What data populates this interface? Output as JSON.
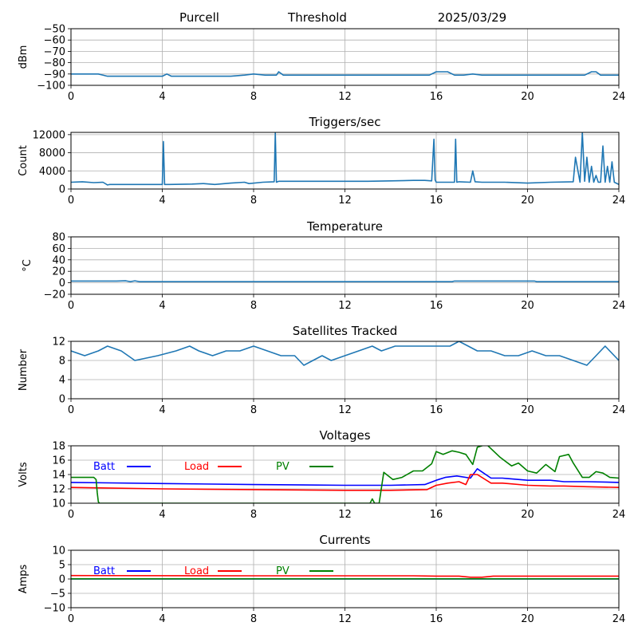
{
  "header": {
    "station": "Purcell",
    "mode": "Threshold",
    "date": "2025/03/29"
  },
  "chart_data": [
    {
      "type": "line",
      "title": "",
      "xlabel": "",
      "ylabel": "dBm",
      "xlim": [
        0,
        24
      ],
      "ylim": [
        -100,
        -50
      ],
      "xticks": [
        "0",
        "4",
        "8",
        "12",
        "16",
        "20",
        "24"
      ],
      "yticks": [
        "−50",
        "−60",
        "−70",
        "−80",
        "−90",
        "−100"
      ],
      "grid": true,
      "series": [
        {
          "color": "#1f77b4",
          "x": [
            0,
            1.2,
            1.6,
            4,
            4.2,
            4.4,
            7,
            7.6,
            8,
            8.5,
            9,
            9.1,
            9.3,
            12,
            15.7,
            16,
            16.5,
            16.8,
            17.2,
            17.6,
            18,
            19,
            20,
            21,
            22,
            22.5,
            22.8,
            23,
            23.2,
            23.5,
            24
          ],
          "y": [
            -90,
            -90,
            -92,
            -92,
            -90,
            -92,
            -92,
            -91,
            -90,
            -91,
            -91,
            -88,
            -91,
            -91,
            -91,
            -88,
            -88,
            -91,
            -91,
            -90,
            -91,
            -91,
            -91,
            -91,
            -91,
            -91,
            -88,
            -88,
            -91,
            -91,
            -91
          ]
        }
      ]
    },
    {
      "type": "line",
      "title": "Triggers/sec",
      "xlabel": "",
      "ylabel": "Count",
      "xlim": [
        0,
        24
      ],
      "ylim": [
        0,
        12500
      ],
      "xticks": [
        "0",
        "4",
        "8",
        "12",
        "16",
        "20",
        "24"
      ],
      "yticks": [
        "0",
        "4000",
        "8000",
        "12000"
      ],
      "grid": true,
      "series": [
        {
          "color": "#1f77b4",
          "x": [
            0,
            0.5,
            1,
            1.4,
            1.6,
            1.7,
            2.5,
            3.5,
            4,
            4.05,
            4.1,
            4.2,
            4.3,
            5.3,
            5.8,
            6.3,
            7,
            7.6,
            7.8,
            8.4,
            8.9,
            8.95,
            9,
            9.05,
            9.1,
            10,
            11,
            12,
            13,
            14,
            15,
            15.5,
            15.8,
            15.9,
            15.95,
            16,
            16.2,
            16.8,
            16.85,
            16.9,
            17,
            17.5,
            17.6,
            17.7,
            18,
            18.5,
            19,
            20,
            21,
            22,
            22.1,
            22.3,
            22.4,
            22.5,
            22.6,
            22.7,
            22.8,
            22.9,
            23,
            23.1,
            23.2,
            23.3,
            23.4,
            23.5,
            23.6,
            23.7,
            23.8,
            24
          ],
          "y": [
            1500,
            1600,
            1400,
            1500,
            900,
            1000,
            1000,
            1000,
            1000,
            10500,
            1000,
            1000,
            1000,
            1100,
            1200,
            1000,
            1300,
            1500,
            1200,
            1500,
            1600,
            12500,
            1500,
            1600,
            1700,
            1700,
            1700,
            1700,
            1700,
            1800,
            1900,
            1900,
            1800,
            11000,
            2000,
            1500,
            1500,
            1500,
            11000,
            1500,
            1600,
            1500,
            4000,
            1600,
            1500,
            1500,
            1500,
            1300,
            1500,
            1600,
            7000,
            1500,
            12500,
            1700,
            7000,
            1500,
            5000,
            1500,
            3000,
            1500,
            1500,
            9500,
            1500,
            5000,
            1500,
            6000,
            1500,
            1000
          ]
        }
      ]
    },
    {
      "type": "line",
      "title": "Temperature",
      "xlabel": "",
      "ylabel": "°C",
      "xlim": [
        0,
        24
      ],
      "ylim": [
        -20,
        80
      ],
      "xticks": [
        "0",
        "4",
        "8",
        "12",
        "16",
        "20",
        "24"
      ],
      "yticks": [
        "80",
        "60",
        "40",
        "20",
        "0",
        "−20"
      ],
      "grid": true,
      "series": [
        {
          "color": "#1f77b4",
          "x": [
            0,
            2,
            2.4,
            2.6,
            2.8,
            3,
            16.7,
            16.8,
            20.3,
            20.4,
            24
          ],
          "y": [
            3,
            3,
            3.5,
            2,
            3.5,
            2,
            2,
            3,
            3,
            2,
            2
          ]
        }
      ]
    },
    {
      "type": "line",
      "title": "Satellites Tracked",
      "xlabel": "",
      "ylabel": "Number",
      "xlim": [
        0,
        24
      ],
      "ylim": [
        0,
        12
      ],
      "xticks": [
        "0",
        "4",
        "8",
        "12",
        "16",
        "20",
        "24"
      ],
      "yticks": [
        "0",
        "4",
        "8",
        "12"
      ],
      "grid": true,
      "series": [
        {
          "color": "#1f77b4",
          "x": [
            0,
            0.6,
            1.2,
            1.6,
            2.2,
            2.8,
            3.8,
            4.6,
            5.2,
            5.6,
            6.2,
            6.8,
            7.4,
            8,
            8.6,
            9.2,
            9.8,
            10.2,
            10.6,
            11,
            11.4,
            12,
            12.6,
            13.2,
            13.6,
            14.2,
            14.8,
            15.4,
            16,
            16.6,
            17,
            17.4,
            17.8,
            18.4,
            19,
            19.6,
            20.2,
            20.8,
            21.4,
            22,
            22.6,
            23,
            23.4,
            24
          ],
          "y": [
            10,
            9,
            10,
            11,
            10,
            8,
            9,
            10,
            11,
            10,
            9,
            10,
            10,
            11,
            10,
            9,
            9,
            7,
            8,
            9,
            8,
            9,
            10,
            11,
            10,
            11,
            11,
            11,
            11,
            11,
            12,
            11,
            10,
            10,
            9,
            9,
            10,
            9,
            9,
            8,
            7,
            9,
            11,
            8
          ]
        }
      ]
    },
    {
      "type": "line",
      "title": "Voltages",
      "xlabel": "",
      "ylabel": "Volts",
      "xlim": [
        0,
        24
      ],
      "ylim": [
        10,
        18
      ],
      "xticks": [
        "0",
        "4",
        "8",
        "12",
        "16",
        "20",
        "24"
      ],
      "yticks": [
        "10",
        "12",
        "14",
        "16",
        "18"
      ],
      "grid": true,
      "legend": "inline-top",
      "series": [
        {
          "name": "Batt",
          "color": "#0000ff",
          "x": [
            0,
            4,
            8,
            12,
            14,
            15.5,
            16,
            16.4,
            16.9,
            17.5,
            17.8,
            18.4,
            18.9,
            20,
            21,
            21.6,
            22.6,
            24
          ],
          "y": [
            12.9,
            12.75,
            12.6,
            12.5,
            12.5,
            12.6,
            13.2,
            13.6,
            13.8,
            13.5,
            14.8,
            13.5,
            13.5,
            13.2,
            13.2,
            13.0,
            13.0,
            12.9
          ]
        },
        {
          "name": "Load",
          "color": "#ff0000",
          "x": [
            0,
            4,
            8,
            12,
            14,
            15.6,
            16,
            16.5,
            17,
            17.3,
            17.5,
            17.8,
            18.4,
            18.9,
            20,
            21,
            21.6,
            22.6,
            24
          ],
          "y": [
            12.2,
            12.0,
            11.9,
            11.8,
            11.8,
            11.9,
            12.5,
            12.8,
            13.0,
            12.6,
            14.0,
            14.0,
            12.8,
            12.8,
            12.5,
            12.4,
            12.4,
            12.3,
            12.2
          ]
        },
        {
          "name": "PV",
          "color": "#008000",
          "x": [
            0,
            0.5,
            1,
            1.1,
            1.15,
            1.2,
            1.25,
            12.8,
            13.1,
            13.2,
            13.3,
            13.4,
            13.5,
            13.7,
            14.1,
            14.5,
            15,
            15.4,
            15.8,
            16,
            16.3,
            16.7,
            17,
            17.3,
            17.6,
            17.8,
            18.2,
            18.8,
            19.3,
            19.6,
            20,
            20.4,
            20.8,
            21.2,
            21.4,
            21.8,
            22,
            22.4,
            22.7,
            23,
            23.3,
            23.6,
            24
          ],
          "y": [
            13.6,
            13.6,
            13.6,
            13.3,
            11.5,
            10.2,
            10,
            10,
            10,
            10.6,
            10,
            10,
            10,
            14.3,
            13.3,
            13.6,
            14.5,
            14.5,
            15.5,
            17.2,
            16.8,
            17.3,
            17.1,
            16.8,
            15.4,
            17.8,
            18.2,
            16.4,
            15.2,
            15.6,
            14.5,
            14.2,
            15.4,
            14.4,
            16.5,
            16.8,
            15.6,
            13.6,
            13.6,
            14.4,
            14.2,
            13.6,
            13.5
          ]
        }
      ]
    },
    {
      "type": "line",
      "title": "Currents",
      "xlabel": "",
      "ylabel": "Amps",
      "xlim": [
        0,
        24
      ],
      "ylim": [
        -10,
        10
      ],
      "xticks": [
        "0",
        "4",
        "8",
        "12",
        "16",
        "20",
        "24"
      ],
      "yticks": [
        "10",
        "5",
        "0",
        "−5",
        "−10"
      ],
      "grid": true,
      "legend": "inline-top",
      "series": [
        {
          "name": "Batt",
          "color": "#0000ff",
          "x": [
            0,
            24
          ],
          "y": [
            0,
            0
          ]
        },
        {
          "name": "Load",
          "color": "#ff0000",
          "x": [
            0,
            8,
            15,
            16,
            17,
            17.5,
            18,
            18.5,
            24
          ],
          "y": [
            1.2,
            1.1,
            1.1,
            1.0,
            1.0,
            0.6,
            0.6,
            1.0,
            1.0
          ]
        },
        {
          "name": "PV",
          "color": "#008000",
          "x": [
            0,
            24
          ],
          "y": [
            0.05,
            0.05
          ]
        }
      ]
    }
  ]
}
